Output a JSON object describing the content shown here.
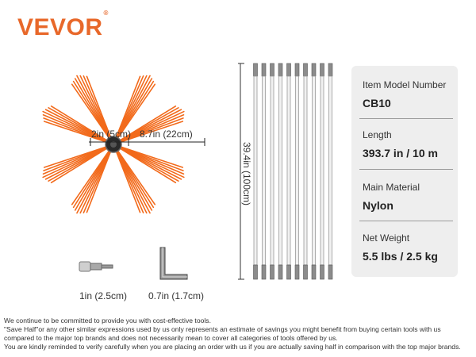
{
  "brand": {
    "name": "VEVOR",
    "mark": "®"
  },
  "brush": {
    "hub_diameter": "2in (5cm)",
    "bristle_length": "8.7in (22cm)"
  },
  "rods": {
    "length_label": "39.4in (100cm)"
  },
  "accessories": {
    "adapter_label": "1in (2.5cm)",
    "hex_key_label": "0.7in (1.7cm)"
  },
  "specs": [
    {
      "label": "Item Model Number",
      "value": "CB10"
    },
    {
      "label": "Length",
      "value": "393.7 in / 10 m"
    },
    {
      "label": "Main Material",
      "value": "Nylon"
    },
    {
      "label": "Net Weight",
      "value": "5.5 lbs / 2.5 kg"
    }
  ],
  "disclaimer": [
    "We continue to be committed to provide you with cost-effective tools.",
    "\"Save Half\"or any other similar expressions used by us only represents an estimate of savings you might benefit from buying certain tools with us",
    "compared to the major top brands and does not necessarily mean to cover all categories of tools offered by us.",
    "You are kindly reminded to verify carefully when you are placing an order with us if you are actually saving half in comparison with the top major brands."
  ],
  "colors": {
    "brand": "#e8682a",
    "bristle": "#f26a1b",
    "card": "#eeeeee"
  }
}
